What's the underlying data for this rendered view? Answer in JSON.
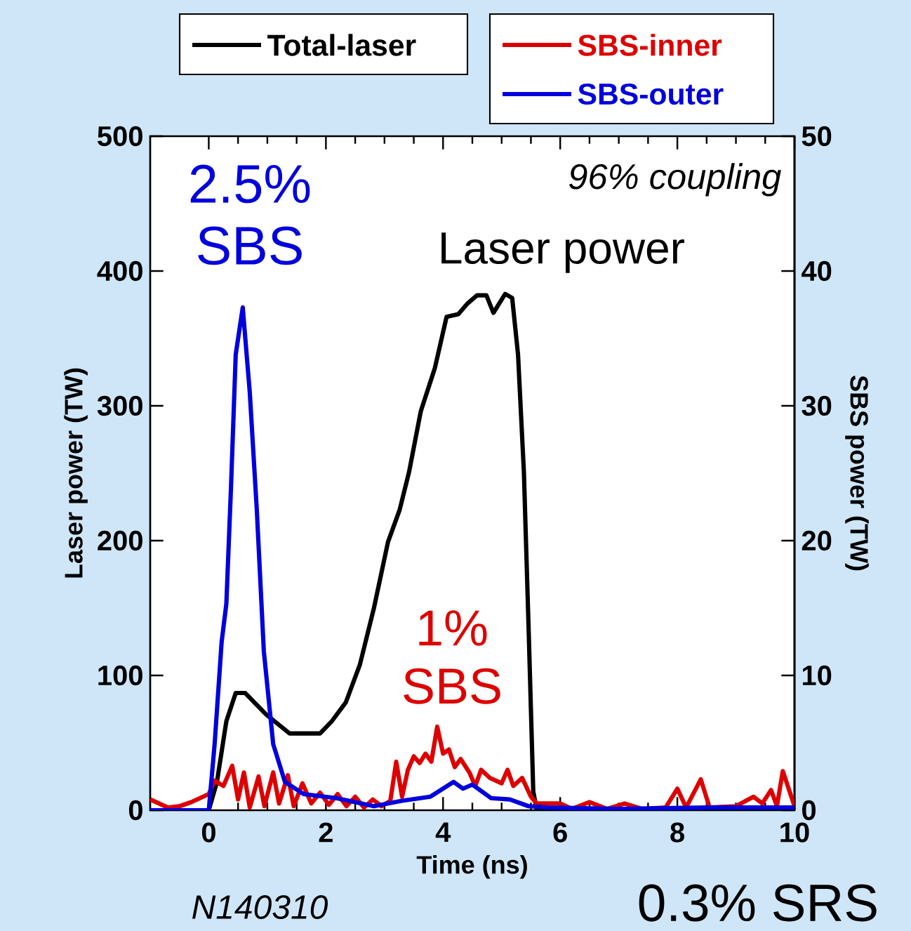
{
  "chart_data": {
    "type": "line",
    "xlabel": "Time (ns)",
    "ylabel": "Laser power (TW)",
    "y2label": "SBS power (TW)",
    "xlim": [
      -1,
      10
    ],
    "xticks": [
      0,
      2,
      4,
      6,
      8,
      10
    ],
    "ylim": [
      0,
      500
    ],
    "yticks": [
      0,
      100,
      200,
      300,
      400,
      500
    ],
    "y2lim": [
      0,
      50
    ],
    "y2ticks": [
      0,
      10,
      20,
      30,
      40,
      50
    ],
    "legend": "top",
    "series": [
      {
        "name": "Total-laser",
        "color": "#000000",
        "axis": "y",
        "x": [
          -1,
          0,
          0.14,
          0.3,
          0.46,
          0.62,
          0.98,
          1.38,
          1.9,
          2.1,
          2.34,
          2.58,
          2.82,
          3.06,
          3.26,
          3.42,
          3.62,
          3.86,
          4.06,
          4.26,
          4.42,
          4.58,
          4.74,
          4.86,
          5.06,
          5.18,
          5.28,
          5.38,
          5.46,
          5.54,
          5.6,
          10
        ],
        "values": [
          0,
          0,
          21,
          66,
          87,
          87,
          71,
          57,
          57,
          66,
          80,
          108,
          150,
          199,
          223,
          251,
          296,
          328,
          366,
          368,
          376,
          382,
          382,
          369,
          383,
          380,
          338,
          251,
          136,
          14,
          0,
          0
        ]
      },
      {
        "name": "SBS-inner",
        "color": "#dd0000",
        "axis": "y2",
        "x": [
          -1.0,
          -0.85,
          -0.7,
          -0.5,
          -0.3,
          -0.15,
          0,
          0.1,
          0.25,
          0.4,
          0.5,
          0.6,
          0.7,
          0.85,
          0.95,
          1.1,
          1.2,
          1.35,
          1.45,
          1.6,
          1.75,
          1.9,
          2.05,
          2.2,
          2.35,
          2.5,
          2.65,
          2.8,
          2.95,
          3.1,
          3.2,
          3.3,
          3.4,
          3.5,
          3.6,
          3.7,
          3.8,
          3.9,
          4.0,
          4.1,
          4.2,
          4.3,
          4.45,
          4.55,
          4.65,
          4.8,
          5.0,
          5.1,
          5.2,
          5.35,
          5.5,
          5.6,
          6.0,
          6.2,
          6.5,
          6.8,
          7.1,
          7.4,
          7.8,
          8.0,
          8.15,
          8.4,
          8.55,
          9.0,
          9.3,
          9.45,
          9.6,
          9.7,
          9.8,
          10.0
        ],
        "values": [
          0.8,
          0.5,
          0.2,
          0.3,
          0.6,
          0.9,
          1.2,
          2.2,
          1.8,
          3.3,
          0.8,
          2.8,
          0.2,
          2.5,
          0.3,
          2.8,
          0.5,
          2.6,
          0.3,
          2.0,
          0.5,
          1.3,
          0.4,
          1.2,
          0.3,
          1.0,
          0.2,
          0.8,
          0.3,
          0.7,
          3.6,
          1.0,
          3.0,
          4.0,
          3.5,
          4.2,
          3.6,
          6.2,
          4.2,
          4.5,
          3.2,
          3.8,
          2.8,
          1.8,
          3.0,
          2.4,
          2.0,
          3.0,
          1.8,
          2.4,
          1.0,
          0.5,
          0.5,
          0.1,
          0.6,
          0.1,
          0.5,
          0.1,
          0.2,
          1.6,
          0.2,
          2.3,
          0.2,
          0.3,
          1.0,
          0.5,
          1.5,
          0.3,
          2.9,
          0.3
        ]
      },
      {
        "name": "SBS-outer",
        "color": "#0000dd",
        "axis": "y2",
        "x": [
          -1,
          0,
          0.1,
          0.22,
          0.3,
          0.38,
          0.46,
          0.58,
          0.7,
          0.82,
          0.94,
          1.1,
          1.3,
          1.62,
          2.18,
          2.82,
          3.3,
          3.78,
          4.18,
          4.34,
          4.5,
          4.82,
          5.14,
          5.46,
          5.78,
          7,
          8.5,
          10
        ],
        "values": [
          0,
          0,
          4.9,
          12.5,
          15.3,
          24,
          33.8,
          37.3,
          31,
          22.3,
          11.8,
          4.9,
          2.1,
          1.2,
          0.9,
          0.3,
          0.7,
          1.0,
          2.1,
          1.6,
          1.9,
          0.9,
          0.8,
          0.3,
          0.2,
          0.1,
          0.2,
          0.2
        ]
      }
    ],
    "annotations": [
      "96% coupling",
      "Laser power",
      "2.5% SBS",
      "1% SBS",
      "N140310",
      "0.3% SRS"
    ]
  }
}
